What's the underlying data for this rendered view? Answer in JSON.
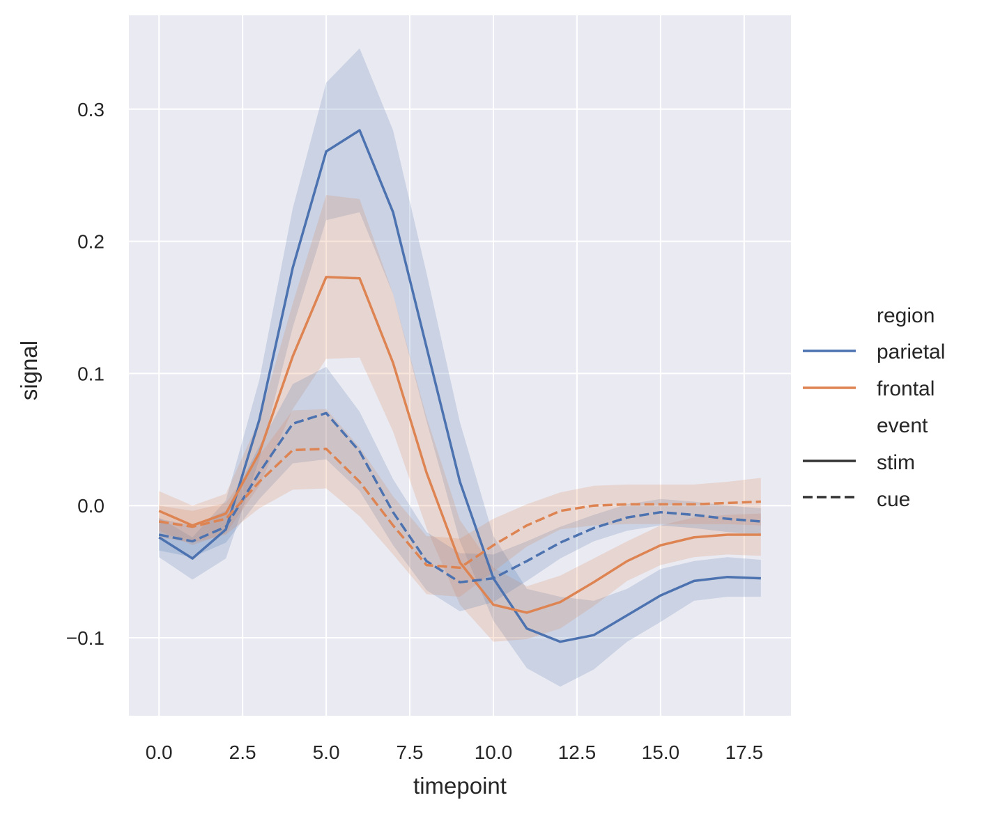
{
  "chart_data": {
    "type": "line",
    "title": "",
    "xlabel": "timepoint",
    "ylabel": "signal",
    "xlim": [
      -0.9,
      18.9
    ],
    "ylim": [
      -0.159,
      0.371
    ],
    "grid": true,
    "background": "#eaeaf2",
    "xticks": [
      0.0,
      2.5,
      5.0,
      7.5,
      10.0,
      12.5,
      15.0,
      17.5
    ],
    "xtick_labels": [
      "0.0",
      "2.5",
      "5.0",
      "7.5",
      "10.0",
      "12.5",
      "15.0",
      "17.5"
    ],
    "yticks": [
      -0.1,
      0.0,
      0.1,
      0.2,
      0.3
    ],
    "ytick_labels": [
      "−0.1",
      "0.0",
      "0.1",
      "0.2",
      "0.3"
    ],
    "x": [
      0,
      1,
      2,
      3,
      4,
      5,
      6,
      7,
      8,
      9,
      10,
      11,
      12,
      13,
      14,
      15,
      16,
      17,
      18
    ],
    "series": [
      {
        "region": "parietal",
        "event": "stim",
        "color": "#4c72b0",
        "dash": "solid",
        "values": [
          -0.024,
          -0.04,
          -0.018,
          0.065,
          0.18,
          0.268,
          0.284,
          0.222,
          0.12,
          0.018,
          -0.055,
          -0.093,
          -0.103,
          -0.098,
          -0.083,
          -0.068,
          -0.057,
          -0.054,
          -0.055
        ],
        "ci_halfwidth": [
          0.015,
          0.016,
          0.022,
          0.03,
          0.045,
          0.052,
          0.062,
          0.062,
          0.056,
          0.045,
          0.032,
          0.03,
          0.034,
          0.026,
          0.02,
          0.02,
          0.015,
          0.015,
          0.014
        ]
      },
      {
        "region": "frontal",
        "event": "stim",
        "color": "#dd8452",
        "dash": "solid",
        "values": [
          -0.004,
          -0.015,
          -0.006,
          0.04,
          0.113,
          0.173,
          0.172,
          0.108,
          0.025,
          -0.043,
          -0.075,
          -0.081,
          -0.073,
          -0.058,
          -0.042,
          -0.03,
          -0.024,
          -0.022,
          -0.022
        ],
        "ci_halfwidth": [
          0.015,
          0.015,
          0.015,
          0.025,
          0.04,
          0.062,
          0.06,
          0.052,
          0.042,
          0.032,
          0.028,
          0.02,
          0.02,
          0.018,
          0.015,
          0.015,
          0.015,
          0.015,
          0.016
        ]
      },
      {
        "region": "parietal",
        "event": "cue",
        "color": "#4c72b0",
        "dash": "dashed",
        "values": [
          -0.022,
          -0.027,
          -0.016,
          0.025,
          0.062,
          0.07,
          0.041,
          -0.005,
          -0.042,
          -0.058,
          -0.055,
          -0.042,
          -0.028,
          -0.017,
          -0.009,
          -0.005,
          -0.007,
          -0.01,
          -0.012
        ],
        "ci_halfwidth": [
          0.012,
          0.012,
          0.012,
          0.02,
          0.03,
          0.035,
          0.03,
          0.025,
          0.022,
          0.022,
          0.018,
          0.015,
          0.012,
          0.01,
          0.01,
          0.01,
          0.01,
          0.01,
          0.01
        ]
      },
      {
        "region": "frontal",
        "event": "cue",
        "color": "#dd8452",
        "dash": "dashed",
        "values": [
          -0.012,
          -0.016,
          -0.01,
          0.018,
          0.042,
          0.043,
          0.018,
          -0.015,
          -0.045,
          -0.047,
          -0.03,
          -0.015,
          -0.004,
          0.0,
          0.001,
          0.001,
          0.001,
          0.002,
          0.003
        ],
        "ci_halfwidth": [
          0.012,
          0.012,
          0.012,
          0.02,
          0.03,
          0.03,
          0.026,
          0.022,
          0.022,
          0.022,
          0.02,
          0.016,
          0.014,
          0.015,
          0.015,
          0.015,
          0.015,
          0.016,
          0.018
        ]
      }
    ],
    "legend": {
      "placement": "right",
      "hue_title": "region",
      "hue_entries": [
        {
          "label": "parietal",
          "color": "#4c72b0"
        },
        {
          "label": "frontal",
          "color": "#dd8452"
        }
      ],
      "style_title": "event",
      "style_entries": [
        {
          "label": "stim",
          "dash": "solid"
        },
        {
          "label": "cue",
          "dash": "dashed"
        }
      ]
    }
  }
}
